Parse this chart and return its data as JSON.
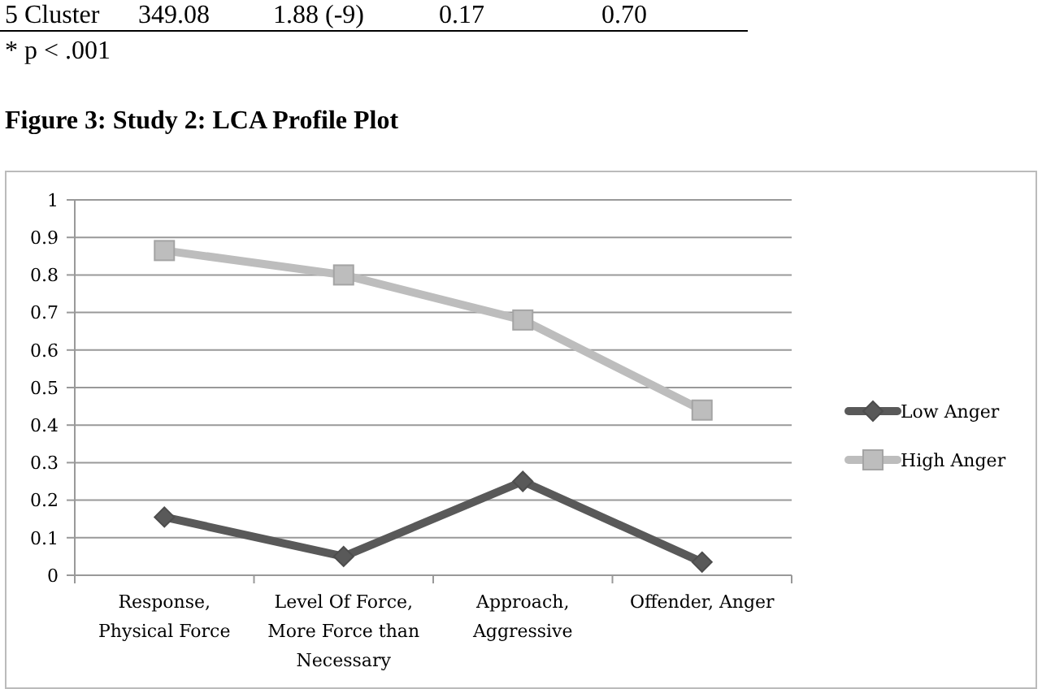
{
  "chart_data": {
    "type": "line",
    "title": "Figure 3: Study 2: LCA Profile Plot",
    "annotations": [
      "5 Cluster",
      "349.08",
      "1.88 (-9)",
      "0.17",
      "0.70",
      "* p < .001"
    ],
    "categories": [
      "Response, Physical Force",
      "Level Of Force, More Force than Necessary",
      "Approach, Aggressive",
      "Offender, Anger"
    ],
    "series": [
      {
        "name": "Low Anger",
        "color": "#595959",
        "marker": "diamond",
        "values": [
          0.155,
          0.05,
          0.25,
          0.035
        ]
      },
      {
        "name": "High Anger",
        "color": "#bdbdbd",
        "marker": "square",
        "values": [
          0.865,
          0.8,
          0.68,
          0.44
        ]
      }
    ],
    "ylim": [
      0,
      1
    ],
    "yticks": [
      0,
      0.1,
      0.2,
      0.3,
      0.4,
      0.5,
      0.6,
      0.7,
      0.8,
      0.9,
      1
    ],
    "grid": "y",
    "legend": "right"
  }
}
